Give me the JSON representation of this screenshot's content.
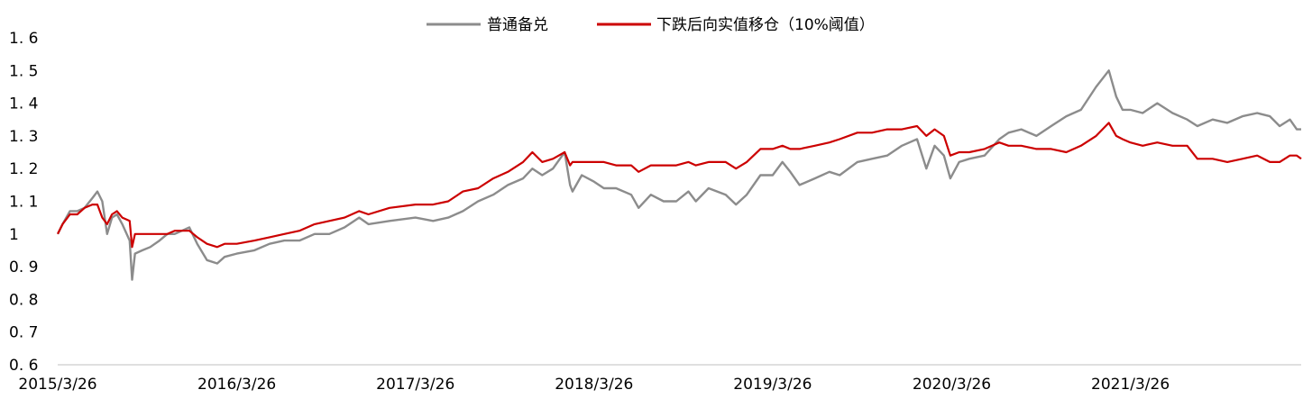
{
  "chart_data": {
    "type": "line",
    "title": "",
    "xlabel": "",
    "ylabel": "",
    "ylim": [
      0.6,
      1.6
    ],
    "yticks": [
      "1.6",
      "1.5",
      "1.4",
      "1.3",
      "1.2",
      "1.1",
      "1",
      "0.9",
      "0.8",
      "0.7",
      "0.6"
    ],
    "xticks": [
      "2015/3/26",
      "2016/3/26",
      "2017/3/26",
      "2018/3/26",
      "2019/3/26",
      "2020/3/26",
      "2021/3/26"
    ],
    "x_range": [
      "2015-03-26",
      "2022-03-10"
    ],
    "grid": false,
    "legend_position": "top-center",
    "series": [
      {
        "name": "普通备兑",
        "color": "#8c8c8c",
        "points": [
          [
            "2015-03-26",
            1.0
          ],
          [
            "2015-04-05",
            1.03
          ],
          [
            "2015-04-20",
            1.07
          ],
          [
            "2015-05-05",
            1.07
          ],
          [
            "2015-05-20",
            1.08
          ],
          [
            "2015-06-05",
            1.11
          ],
          [
            "2015-06-15",
            1.13
          ],
          [
            "2015-06-25",
            1.1
          ],
          [
            "2015-07-05",
            1.0
          ],
          [
            "2015-07-15",
            1.05
          ],
          [
            "2015-07-25",
            1.06
          ],
          [
            "2015-08-05",
            1.03
          ],
          [
            "2015-08-20",
            0.98
          ],
          [
            "2015-08-25",
            0.86
          ],
          [
            "2015-08-31",
            0.94
          ],
          [
            "2015-09-15",
            0.95
          ],
          [
            "2015-10-01",
            0.96
          ],
          [
            "2015-10-20",
            0.98
          ],
          [
            "2015-11-05",
            1.0
          ],
          [
            "2015-11-20",
            1.0
          ],
          [
            "2015-12-05",
            1.01
          ],
          [
            "2015-12-20",
            1.02
          ],
          [
            "2016-01-05",
            0.97
          ],
          [
            "2016-01-25",
            0.92
          ],
          [
            "2016-02-15",
            0.91
          ],
          [
            "2016-03-01",
            0.93
          ],
          [
            "2016-03-26",
            0.94
          ],
          [
            "2016-05-01",
            0.95
          ],
          [
            "2016-06-01",
            0.97
          ],
          [
            "2016-07-01",
            0.98
          ],
          [
            "2016-08-01",
            0.98
          ],
          [
            "2016-09-01",
            1.0
          ],
          [
            "2016-10-01",
            1.0
          ],
          [
            "2016-11-01",
            1.02
          ],
          [
            "2016-12-01",
            1.05
          ],
          [
            "2016-12-20",
            1.03
          ],
          [
            "2017-02-01",
            1.04
          ],
          [
            "2017-03-26",
            1.05
          ],
          [
            "2017-05-01",
            1.04
          ],
          [
            "2017-06-01",
            1.05
          ],
          [
            "2017-07-01",
            1.07
          ],
          [
            "2017-08-01",
            1.1
          ],
          [
            "2017-09-01",
            1.12
          ],
          [
            "2017-10-01",
            1.15
          ],
          [
            "2017-11-01",
            1.17
          ],
          [
            "2017-11-20",
            1.2
          ],
          [
            "2017-12-10",
            1.18
          ],
          [
            "2018-01-01",
            1.2
          ],
          [
            "2018-01-25",
            1.25
          ],
          [
            "2018-02-05",
            1.15
          ],
          [
            "2018-02-10",
            1.13
          ],
          [
            "2018-03-01",
            1.18
          ],
          [
            "2018-03-26",
            1.16
          ],
          [
            "2018-04-15",
            1.14
          ],
          [
            "2018-05-10",
            1.14
          ],
          [
            "2018-06-10",
            1.12
          ],
          [
            "2018-06-25",
            1.08
          ],
          [
            "2018-07-20",
            1.12
          ],
          [
            "2018-08-15",
            1.1
          ],
          [
            "2018-09-10",
            1.1
          ],
          [
            "2018-10-05",
            1.13
          ],
          [
            "2018-10-20",
            1.1
          ],
          [
            "2018-11-15",
            1.14
          ],
          [
            "2018-12-20",
            1.12
          ],
          [
            "2019-01-10",
            1.09
          ],
          [
            "2019-02-01",
            1.12
          ],
          [
            "2019-03-01",
            1.18
          ],
          [
            "2019-03-26",
            1.18
          ],
          [
            "2019-04-15",
            1.22
          ],
          [
            "2019-05-01",
            1.19
          ],
          [
            "2019-05-20",
            1.15
          ],
          [
            "2019-06-20",
            1.17
          ],
          [
            "2019-07-20",
            1.19
          ],
          [
            "2019-08-10",
            1.18
          ],
          [
            "2019-09-15",
            1.22
          ],
          [
            "2019-10-15",
            1.23
          ],
          [
            "2019-11-15",
            1.24
          ],
          [
            "2019-12-15",
            1.27
          ],
          [
            "2020-01-15",
            1.29
          ],
          [
            "2020-02-03",
            1.2
          ],
          [
            "2020-02-20",
            1.27
          ],
          [
            "2020-03-10",
            1.24
          ],
          [
            "2020-03-23",
            1.17
          ],
          [
            "2020-04-10",
            1.22
          ],
          [
            "2020-05-01",
            1.23
          ],
          [
            "2020-06-01",
            1.24
          ],
          [
            "2020-07-01",
            1.29
          ],
          [
            "2020-07-20",
            1.31
          ],
          [
            "2020-08-15",
            1.32
          ],
          [
            "2020-09-15",
            1.3
          ],
          [
            "2020-10-15",
            1.33
          ],
          [
            "2020-11-15",
            1.36
          ],
          [
            "2020-12-15",
            1.38
          ],
          [
            "2021-01-15",
            1.45
          ],
          [
            "2021-02-10",
            1.5
          ],
          [
            "2021-02-25",
            1.42
          ],
          [
            "2021-03-10",
            1.38
          ],
          [
            "2021-03-26",
            1.38
          ],
          [
            "2021-04-20",
            1.37
          ],
          [
            "2021-05-20",
            1.4
          ],
          [
            "2021-06-20",
            1.37
          ],
          [
            "2021-07-20",
            1.35
          ],
          [
            "2021-08-10",
            1.33
          ],
          [
            "2021-09-10",
            1.35
          ],
          [
            "2021-10-10",
            1.34
          ],
          [
            "2021-11-10",
            1.36
          ],
          [
            "2021-12-10",
            1.37
          ],
          [
            "2022-01-05",
            1.36
          ],
          [
            "2022-01-25",
            1.33
          ],
          [
            "2022-02-15",
            1.35
          ],
          [
            "2022-03-01",
            1.32
          ],
          [
            "2022-03-10",
            1.32
          ]
        ]
      },
      {
        "name": "下跌后向实值移仓（10%阈值）",
        "color": "#cc0000",
        "points": [
          [
            "2015-03-26",
            1.0
          ],
          [
            "2015-04-05",
            1.03
          ],
          [
            "2015-04-20",
            1.06
          ],
          [
            "2015-05-05",
            1.06
          ],
          [
            "2015-05-20",
            1.08
          ],
          [
            "2015-06-05",
            1.09
          ],
          [
            "2015-06-15",
            1.09
          ],
          [
            "2015-06-25",
            1.05
          ],
          [
            "2015-07-05",
            1.03
          ],
          [
            "2015-07-15",
            1.06
          ],
          [
            "2015-07-25",
            1.07
          ],
          [
            "2015-08-05",
            1.05
          ],
          [
            "2015-08-20",
            1.04
          ],
          [
            "2015-08-25",
            0.96
          ],
          [
            "2015-08-31",
            1.0
          ],
          [
            "2015-09-15",
            1.0
          ],
          [
            "2015-10-01",
            1.0
          ],
          [
            "2015-10-20",
            1.0
          ],
          [
            "2015-11-05",
            1.0
          ],
          [
            "2015-11-20",
            1.01
          ],
          [
            "2015-12-05",
            1.01
          ],
          [
            "2015-12-20",
            1.01
          ],
          [
            "2016-01-05",
            0.99
          ],
          [
            "2016-01-25",
            0.97
          ],
          [
            "2016-02-15",
            0.96
          ],
          [
            "2016-03-01",
            0.97
          ],
          [
            "2016-03-26",
            0.97
          ],
          [
            "2016-05-01",
            0.98
          ],
          [
            "2016-06-01",
            0.99
          ],
          [
            "2016-07-01",
            1.0
          ],
          [
            "2016-08-01",
            1.01
          ],
          [
            "2016-09-01",
            1.03
          ],
          [
            "2016-10-01",
            1.04
          ],
          [
            "2016-11-01",
            1.05
          ],
          [
            "2016-12-01",
            1.07
          ],
          [
            "2016-12-20",
            1.06
          ],
          [
            "2017-02-01",
            1.08
          ],
          [
            "2017-03-26",
            1.09
          ],
          [
            "2017-05-01",
            1.09
          ],
          [
            "2017-06-01",
            1.1
          ],
          [
            "2017-07-01",
            1.13
          ],
          [
            "2017-08-01",
            1.14
          ],
          [
            "2017-09-01",
            1.17
          ],
          [
            "2017-10-01",
            1.19
          ],
          [
            "2017-11-01",
            1.22
          ],
          [
            "2017-11-20",
            1.25
          ],
          [
            "2017-12-10",
            1.22
          ],
          [
            "2018-01-01",
            1.23
          ],
          [
            "2018-01-25",
            1.25
          ],
          [
            "2018-02-05",
            1.21
          ],
          [
            "2018-02-10",
            1.22
          ],
          [
            "2018-03-01",
            1.22
          ],
          [
            "2018-03-26",
            1.22
          ],
          [
            "2018-04-15",
            1.22
          ],
          [
            "2018-05-10",
            1.21
          ],
          [
            "2018-06-10",
            1.21
          ],
          [
            "2018-06-25",
            1.19
          ],
          [
            "2018-07-20",
            1.21
          ],
          [
            "2018-08-15",
            1.21
          ],
          [
            "2018-09-10",
            1.21
          ],
          [
            "2018-10-05",
            1.22
          ],
          [
            "2018-10-20",
            1.21
          ],
          [
            "2018-11-15",
            1.22
          ],
          [
            "2018-12-20",
            1.22
          ],
          [
            "2019-01-10",
            1.2
          ],
          [
            "2019-02-01",
            1.22
          ],
          [
            "2019-03-01",
            1.26
          ],
          [
            "2019-03-26",
            1.26
          ],
          [
            "2019-04-15",
            1.27
          ],
          [
            "2019-05-01",
            1.26
          ],
          [
            "2019-05-20",
            1.26
          ],
          [
            "2019-06-20",
            1.27
          ],
          [
            "2019-07-20",
            1.28
          ],
          [
            "2019-08-10",
            1.29
          ],
          [
            "2019-09-15",
            1.31
          ],
          [
            "2019-10-15",
            1.31
          ],
          [
            "2019-11-15",
            1.32
          ],
          [
            "2019-12-15",
            1.32
          ],
          [
            "2020-01-15",
            1.33
          ],
          [
            "2020-02-03",
            1.3
          ],
          [
            "2020-02-20",
            1.32
          ],
          [
            "2020-03-10",
            1.3
          ],
          [
            "2020-03-23",
            1.24
          ],
          [
            "2020-04-10",
            1.25
          ],
          [
            "2020-05-01",
            1.25
          ],
          [
            "2020-06-01",
            1.26
          ],
          [
            "2020-07-01",
            1.28
          ],
          [
            "2020-07-20",
            1.27
          ],
          [
            "2020-08-15",
            1.27
          ],
          [
            "2020-09-15",
            1.26
          ],
          [
            "2020-10-15",
            1.26
          ],
          [
            "2020-11-15",
            1.25
          ],
          [
            "2020-12-15",
            1.27
          ],
          [
            "2021-01-15",
            1.3
          ],
          [
            "2021-02-10",
            1.34
          ],
          [
            "2021-02-25",
            1.3
          ],
          [
            "2021-03-10",
            1.29
          ],
          [
            "2021-03-26",
            1.28
          ],
          [
            "2021-04-20",
            1.27
          ],
          [
            "2021-05-20",
            1.28
          ],
          [
            "2021-06-20",
            1.27
          ],
          [
            "2021-07-20",
            1.27
          ],
          [
            "2021-08-10",
            1.23
          ],
          [
            "2021-09-10",
            1.23
          ],
          [
            "2021-10-10",
            1.22
          ],
          [
            "2021-11-10",
            1.23
          ],
          [
            "2021-12-10",
            1.24
          ],
          [
            "2022-01-05",
            1.22
          ],
          [
            "2022-01-25",
            1.22
          ],
          [
            "2022-02-15",
            1.24
          ],
          [
            "2022-03-01",
            1.24
          ],
          [
            "2022-03-10",
            1.23
          ]
        ]
      }
    ]
  }
}
